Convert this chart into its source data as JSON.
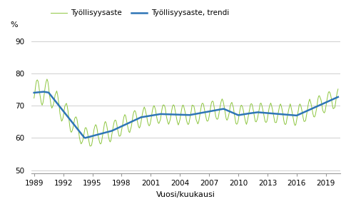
{
  "title": "",
  "ylabel": "%",
  "xlabel": "Vuosi/kuukausi",
  "yticks": [
    50,
    60,
    70,
    80,
    90
  ],
  "xticks": [
    1989,
    1992,
    1995,
    1998,
    2001,
    2004,
    2007,
    2010,
    2013,
    2016,
    2019
  ],
  "ylim": [
    49,
    93
  ],
  "xlim": [
    1988.75,
    2020.5
  ],
  "line1_label": "Työllisyysaste",
  "line2_label": "Työllisyysaste, trendi",
  "line1_color": "#8dc63f",
  "line2_color": "#2e75b6",
  "background_color": "#ffffff",
  "grid_color": "#c8c8c8"
}
